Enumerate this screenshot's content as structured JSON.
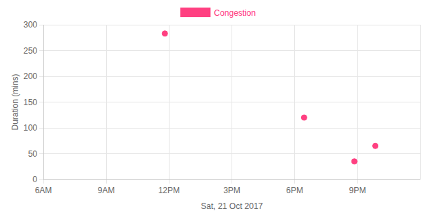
{
  "chart_data": {
    "type": "scatter",
    "x_label": "Sat, 21 Oct 2017",
    "y_label": "Duration (mins)",
    "x": [
      11.8,
      18.45,
      20.85,
      21.85
    ],
    "series": [
      {
        "name": "Congestion",
        "color": "#ff4081",
        "marker": "circle",
        "values": [
          283,
          120,
          35,
          65
        ]
      }
    ],
    "xlim": [
      6,
      24
    ],
    "xticks": [
      {
        "value": 6,
        "label": "6AM"
      },
      {
        "value": 9,
        "label": "9AM"
      },
      {
        "value": 12,
        "label": "12PM"
      },
      {
        "value": 15,
        "label": "3PM"
      },
      {
        "value": 18,
        "label": "6PM"
      },
      {
        "value": 21,
        "label": "9PM"
      }
    ],
    "ylim": [
      0,
      300
    ],
    "yticks": [
      0,
      50,
      100,
      150,
      200,
      250,
      300
    ],
    "grid": true,
    "legend": "top"
  }
}
